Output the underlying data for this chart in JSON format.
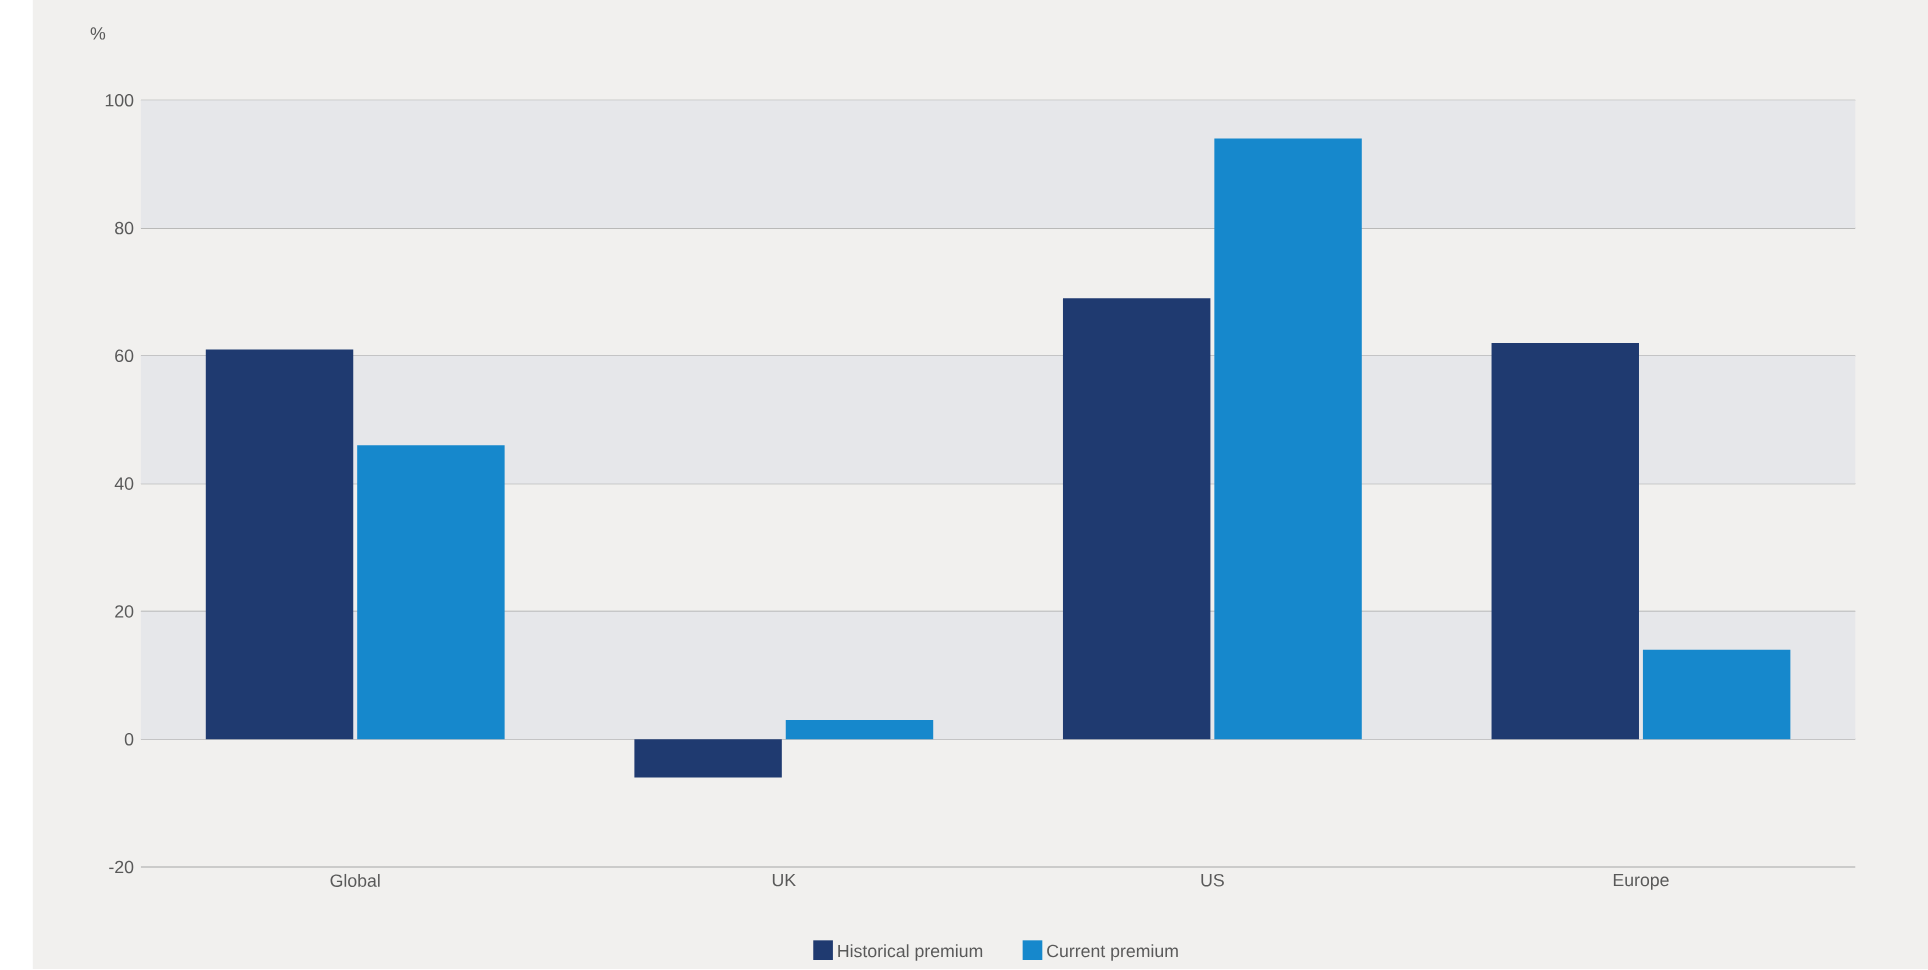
{
  "chart_data": {
    "type": "bar",
    "ylabel": "%",
    "categories": [
      "Global",
      "UK",
      "US",
      "Europe"
    ],
    "series": [
      {
        "name": "Historical premium",
        "color": "#1f3a70",
        "values": [
          61,
          -6,
          69,
          62
        ]
      },
      {
        "name": "Current premium",
        "color": "#1688cc",
        "values": [
          46,
          3,
          94,
          14
        ]
      }
    ],
    "ylim": [
      -20,
      100
    ],
    "yticks": [
      -20,
      0,
      20,
      40,
      60,
      80,
      100
    ],
    "grid": "y",
    "legend": "bottom",
    "bands": [
      {
        "axis": "y",
        "from": 80,
        "to": 100,
        "color": "#e6e7ea"
      },
      {
        "axis": "y",
        "from": 40,
        "to": 60,
        "color": "#e6e7ea"
      },
      {
        "axis": "y",
        "from": 0,
        "to": 20,
        "color": "#e6e7ea"
      }
    ]
  }
}
